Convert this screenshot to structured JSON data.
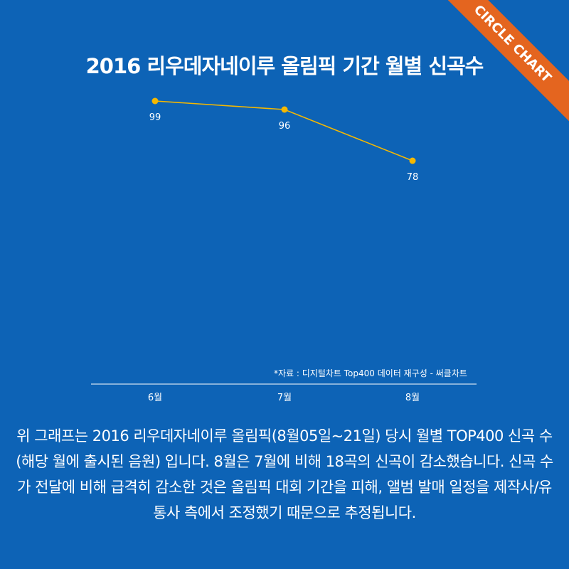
{
  "title": "2016 리우데자네이루 올림픽 기간 월별 신곡수",
  "ribbon": "CIRCLE CHART",
  "source": "*자료 : 디지털차트 Top400 데이터 재구성 - 써클차트",
  "description": "위 그래프는 2016 리우데자네이루 올림픽(8월05일~21일) 당시 월별 TOP400 신곡 수(해당 월에 출시된 음원) 입니다. 8월은 7월에 비해 18곡의 신곡이 감소했습니다. 신곡 수가 전달에 비해 급격히 감소한 것은 올림픽 대회 기간을 피해, 앨범 발매 일정을 제작사/유통사 측에서 조정했기 때문으로 추정됩니다.",
  "colors": {
    "background": "#0d63b6",
    "line": "#f5b800",
    "ribbon": "#e4651f"
  },
  "chart_data": {
    "type": "line",
    "title": "2016 리우데자네이루 올림픽 기간 월별 신곡수",
    "categories": [
      "6월",
      "7월",
      "8월"
    ],
    "series": [
      {
        "values": [
          99,
          96,
          78
        ]
      }
    ],
    "data_labels": [
      "99",
      "96",
      "78"
    ],
    "grid": false
  }
}
